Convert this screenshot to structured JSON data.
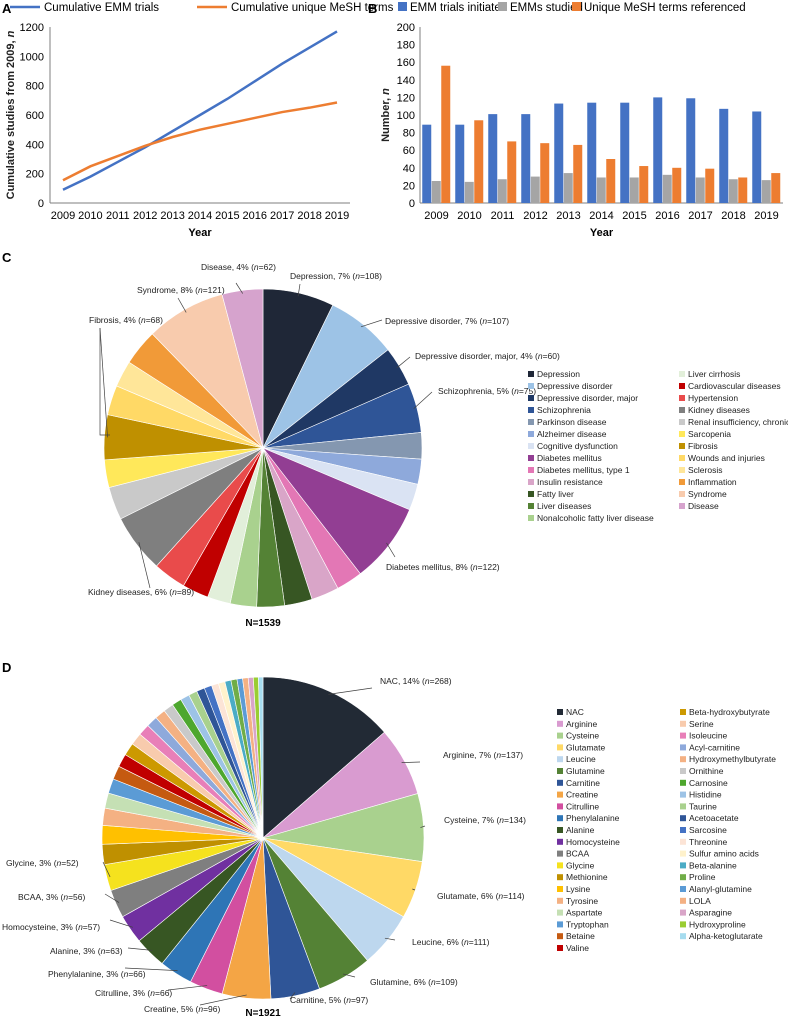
{
  "chart_data": [
    {
      "panel": "A",
      "type": "line",
      "x": [
        2009,
        2010,
        2011,
        2012,
        2013,
        2014,
        2015,
        2016,
        2017,
        2018,
        2019
      ],
      "series": [
        {
          "name": "Cumulative EMM trials",
          "color": "#4472C4",
          "values": [
            90,
            180,
            280,
            380,
            490,
            600,
            710,
            830,
            950,
            1060,
            1170
          ]
        },
        {
          "name": "Cumulative unique MeSH terms",
          "color": "#ED7D31",
          "values": [
            155,
            250,
            320,
            390,
            450,
            500,
            540,
            580,
            620,
            650,
            685
          ]
        }
      ],
      "xlabel": "Year",
      "ylabel_main": "Cumulative studies from 2009, ",
      "ylabel_italic": "n",
      "ylim": [
        0,
        1200
      ],
      "yticks": [
        0,
        200,
        400,
        600,
        800,
        1000,
        1200
      ]
    },
    {
      "panel": "B",
      "type": "bar",
      "categories": [
        "2009",
        "2010",
        "2011",
        "2012",
        "2013",
        "2014",
        "2015",
        "2016",
        "2017",
        "2018",
        "2019"
      ],
      "series": [
        {
          "name": "EMM trials initiated",
          "color": "#4472C4",
          "values": [
            89,
            89,
            101,
            101,
            113,
            114,
            114,
            120,
            119,
            107,
            104
          ]
        },
        {
          "name": "EMMs studied",
          "color": "#A5A5A5",
          "values": [
            25,
            24,
            27,
            30,
            34,
            29,
            29,
            32,
            29,
            27,
            26
          ]
        },
        {
          "name": "Unique MeSH terms referenced",
          "color": "#ED7D31",
          "values": [
            156,
            94,
            70,
            68,
            66,
            50,
            42,
            40,
            39,
            29,
            34
          ]
        }
      ],
      "xlabel": "Year",
      "ylabel_main": "Number, ",
      "ylabel_italic": "n",
      "ylim": [
        0,
        200
      ],
      "yticks": [
        0,
        20,
        40,
        60,
        80,
        100,
        120,
        140,
        160,
        180,
        200
      ]
    },
    {
      "panel": "C",
      "type": "pie",
      "total_label": "N=1539",
      "slices": [
        {
          "name": "Depression",
          "value": 108,
          "color": "#1F2737"
        },
        {
          "name": "Depressive disorder",
          "value": 107,
          "color": "#9DC3E6"
        },
        {
          "name": "Depressive disorder, major",
          "value": 60,
          "color": "#1F3864"
        },
        {
          "name": "Schizophrenia",
          "value": 75,
          "color": "#2F5597"
        },
        {
          "name": "Parkinson disease",
          "value": 40,
          "color": "#8497B0"
        },
        {
          "name": "Alzheimer disease",
          "value": 38,
          "color": "#8EA9DB"
        },
        {
          "name": "Cognitive dysfunction",
          "value": 40,
          "color": "#DAE3F3"
        },
        {
          "name": "Diabetes mellitus",
          "value": 122,
          "color": "#923E93"
        },
        {
          "name": "Diabetes mellitus, type 1",
          "value": 40,
          "color": "#E377B5"
        },
        {
          "name": "Insulin resistance",
          "value": 42,
          "color": "#D9A5C8"
        },
        {
          "name": "Fatty liver",
          "value": 42,
          "color": "#375623"
        },
        {
          "name": "Liver diseases",
          "value": 42,
          "color": "#548235"
        },
        {
          "name": "Nonalcoholic fatty liver disease",
          "value": 40,
          "color": "#A9D18E"
        },
        {
          "name": "Liver cirrhosis",
          "value": 35,
          "color": "#E2EFDA"
        },
        {
          "name": "Cardiovascular diseases",
          "value": 40,
          "color": "#C00000"
        },
        {
          "name": "Hypertension",
          "value": 50,
          "color": "#E94B4B"
        },
        {
          "name": "Kidney diseases",
          "value": 89,
          "color": "#7F7F7F"
        },
        {
          "name": "Renal insufficiency, chronic",
          "value": 50,
          "color": "#C9C9C9"
        },
        {
          "name": "Sarcopenia",
          "value": 42,
          "color": "#FFE85A"
        },
        {
          "name": "Fibrosis",
          "value": 68,
          "color": "#BF9000"
        },
        {
          "name": "Wounds and injuries",
          "value": 45,
          "color": "#FFD966"
        },
        {
          "name": "Sclerosis",
          "value": 40,
          "color": "#FFE699"
        },
        {
          "name": "Inflammation",
          "value": 55,
          "color": "#F19A38"
        },
        {
          "name": "Syndrome",
          "value": 121,
          "color": "#F8CBAD"
        },
        {
          "name": "Disease",
          "value": 62,
          "color": "#D6A3CD"
        }
      ],
      "callouts": [
        {
          "slice": "Depression",
          "text": "Depression, 7% (",
          "italic": "n",
          "tail": "=108)"
        },
        {
          "slice": "Depressive disorder",
          "text": "Depressive disorder, 7% (",
          "italic": "n",
          "tail": "=107)"
        },
        {
          "slice": "Depressive disorder, major",
          "text": "Depressive disorder, major, 4% (",
          "italic": "n",
          "tail": "=60)"
        },
        {
          "slice": "Schizophrenia",
          "text": "Schizophrenia, 5% (",
          "italic": "n",
          "tail": "=75)"
        },
        {
          "slice": "Diabetes mellitus",
          "text": "Diabetes mellitus, 8% (",
          "italic": "n",
          "tail": "=122)"
        },
        {
          "slice": "Kidney diseases",
          "text": "Kidney diseases, 6% (",
          "italic": "n",
          "tail": "=89)"
        },
        {
          "slice": "Fibrosis",
          "text": "Fibrosis, 4% (",
          "italic": "n",
          "tail": "=68)"
        },
        {
          "slice": "Syndrome",
          "text": "Syndrome, 8% (",
          "italic": "n",
          "tail": "=121)"
        },
        {
          "slice": "Disease",
          "text": "Disease, 4% (",
          "italic": "n",
          "tail": "=62)"
        }
      ]
    },
    {
      "panel": "D",
      "type": "pie",
      "total_label": "N=1921",
      "slices": [
        {
          "name": "NAC",
          "value": 268,
          "color": "#222A35"
        },
        {
          "name": "Arginine",
          "value": 137,
          "color": "#D99BD0"
        },
        {
          "name": "Cysteine",
          "value": 134,
          "color": "#A9D18E"
        },
        {
          "name": "Glutamate",
          "value": 114,
          "color": "#FFD966"
        },
        {
          "name": "Leucine",
          "value": 111,
          "color": "#BDD7EE"
        },
        {
          "name": "Glutamine",
          "value": 109,
          "color": "#548235"
        },
        {
          "name": "Carnitine",
          "value": 97,
          "color": "#2F5597"
        },
        {
          "name": "Creatine",
          "value": 96,
          "color": "#F4A545"
        },
        {
          "name": "Citrulline",
          "value": 66,
          "color": "#D24FA0"
        },
        {
          "name": "Phenylalanine",
          "value": 66,
          "color": "#2E75B6"
        },
        {
          "name": "Alanine",
          "value": 63,
          "color": "#375623"
        },
        {
          "name": "Homocysteine",
          "value": 57,
          "color": "#7030A0"
        },
        {
          "name": "BCAA",
          "value": 56,
          "color": "#7F7F7F"
        },
        {
          "name": "Glycine",
          "value": 52,
          "color": "#F5E21E"
        },
        {
          "name": "Methionine",
          "value": 40,
          "color": "#BF9000"
        },
        {
          "name": "Lysine",
          "value": 37,
          "color": "#FFC000"
        },
        {
          "name": "Tyrosine",
          "value": 34,
          "color": "#F4B183"
        },
        {
          "name": "Aspartate",
          "value": 30,
          "color": "#C5E0B4"
        },
        {
          "name": "Tryptophan",
          "value": 29,
          "color": "#5B9BD5"
        },
        {
          "name": "Betaine",
          "value": 27,
          "color": "#C55A11"
        },
        {
          "name": "Valine",
          "value": 26,
          "color": "#C00000"
        },
        {
          "name": "Beta-hydroxybutyrate",
          "value": 25,
          "color": "#CC9900"
        },
        {
          "name": "Serine",
          "value": 24,
          "color": "#F8CBAD"
        },
        {
          "name": "Isoleucine",
          "value": 23,
          "color": "#E87FB8"
        },
        {
          "name": "Acyl-carnitine",
          "value": 22,
          "color": "#8EA9DB"
        },
        {
          "name": "Hydroxymethylbutyrate",
          "value": 21,
          "color": "#F4B183"
        },
        {
          "name": "Ornithine",
          "value": 20,
          "color": "#C9C9C9"
        },
        {
          "name": "Carnosine",
          "value": 19,
          "color": "#4EA72E"
        },
        {
          "name": "Histidine",
          "value": 18,
          "color": "#9DC3E6"
        },
        {
          "name": "Taurine",
          "value": 17,
          "color": "#A9D18E"
        },
        {
          "name": "Acetoacetate",
          "value": 16,
          "color": "#2F5597"
        },
        {
          "name": "Sarcosine",
          "value": 15,
          "color": "#4472C4"
        },
        {
          "name": "Threonine",
          "value": 14,
          "color": "#FCE4D6"
        },
        {
          "name": "Sulfur amino acids",
          "value": 13,
          "color": "#FFF2CC"
        },
        {
          "name": "Beta-alanine",
          "value": 12,
          "color": "#4BACC6"
        },
        {
          "name": "Proline",
          "value": 12,
          "color": "#70AD47"
        },
        {
          "name": "Alanyl-glutamine",
          "value": 11,
          "color": "#5B9BD5"
        },
        {
          "name": "LOLA",
          "value": 11,
          "color": "#F4B183"
        },
        {
          "name": "Asparagine",
          "value": 10,
          "color": "#D9A5C8"
        },
        {
          "name": "Hydroxyproline",
          "value": 10,
          "color": "#9ACD32"
        },
        {
          "name": "Alpha-ketoglutarate",
          "value": 9,
          "color": "#A6DCEF"
        }
      ],
      "callouts": [
        {
          "slice": "NAC",
          "text": "NAC, 14% (",
          "italic": "n",
          "tail": "=268)"
        },
        {
          "slice": "Arginine",
          "text": "Arginine, 7% (",
          "italic": "n",
          "tail": "=137)"
        },
        {
          "slice": "Cysteine",
          "text": "Cysteine, 7% (",
          "italic": "n",
          "tail": "=134)"
        },
        {
          "slice": "Glutamate",
          "text": "Glutamate, 6% (",
          "italic": "n",
          "tail": "=114)"
        },
        {
          "slice": "Leucine",
          "text": "Leucine, 6% (",
          "italic": "n",
          "tail": "=111)"
        },
        {
          "slice": "Glutamine",
          "text": "Glutamine, 6% (",
          "italic": "n",
          "tail": "=109)"
        },
        {
          "slice": "Carnitine",
          "text": "Carnitine, 5% (",
          "italic": "n",
          "tail": "=97)"
        },
        {
          "slice": "Creatine",
          "text": "Creatine, 5% (",
          "italic": "n",
          "tail": "=96)"
        },
        {
          "slice": "Citrulline",
          "text": "Citrulline, 3% (",
          "italic": "n",
          "tail": "=66)"
        },
        {
          "slice": "Phenylalanine",
          "text": "Phenylalanine, 3% (",
          "italic": "n",
          "tail": "=66)"
        },
        {
          "slice": "Alanine",
          "text": "Alanine, 3% (",
          "italic": "n",
          "tail": "=63)"
        },
        {
          "slice": "Homocysteine",
          "text": "Homocysteine, 3% (",
          "italic": "n",
          "tail": "=57)"
        },
        {
          "slice": "BCAA",
          "text": "BCAA, 3% (",
          "italic": "n",
          "tail": "=56)"
        },
        {
          "slice": "Glycine",
          "text": "Glycine, 3% (",
          "italic": "n",
          "tail": "=52)"
        }
      ]
    }
  ]
}
